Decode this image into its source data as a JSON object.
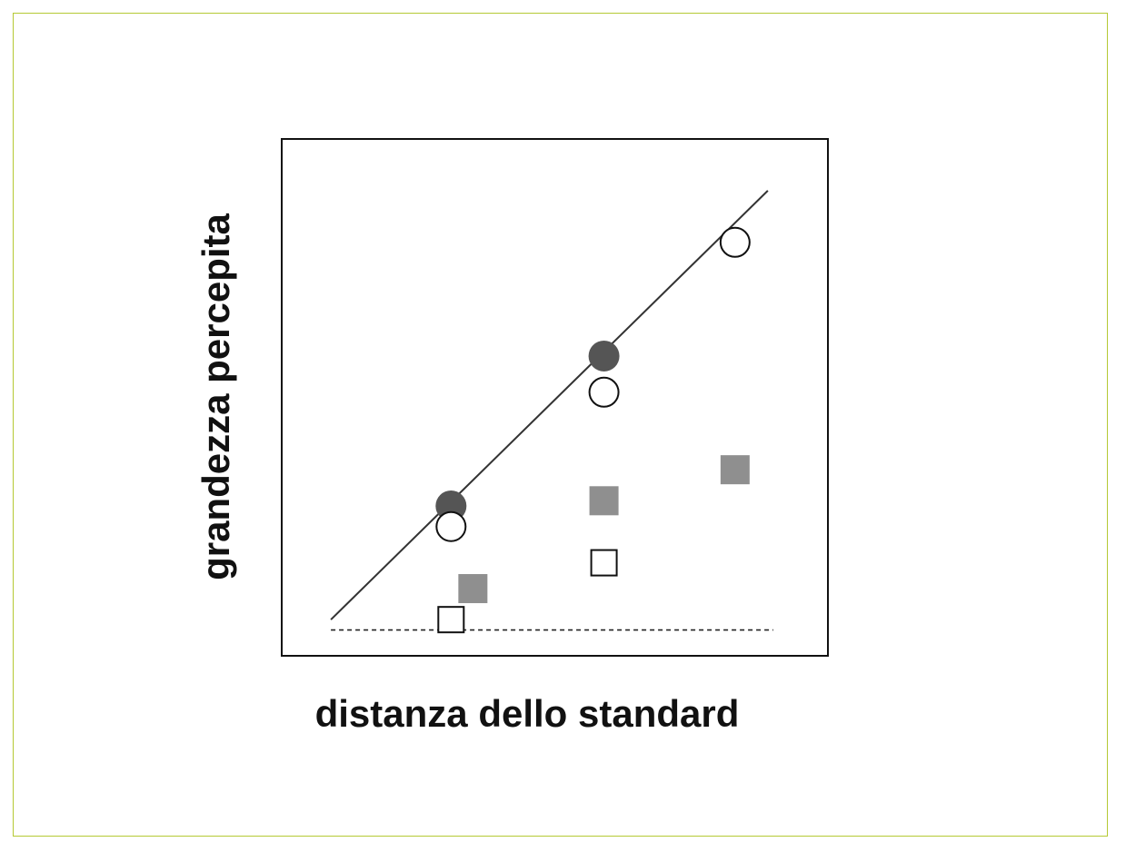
{
  "colors": {
    "frame_border": "#b5c934",
    "plot_border": "#111111",
    "fit_line": "#333333",
    "baseline": "#222222",
    "filled_circle": "#555555",
    "gray_square": "#8f8f8f",
    "open_marker_stroke": "#111111",
    "open_marker_fill": "#ffffff"
  },
  "chart_data": {
    "type": "scatter",
    "title": "",
    "xlabel": "distanza dello standard",
    "ylabel": "grandezza percepita",
    "xlim": [
      0,
      10
    ],
    "ylim": [
      0,
      10
    ],
    "grid": false,
    "tick_labels": false,
    "legend": "none",
    "series": [
      {
        "marker": "filled-circle",
        "color": "#555555",
        "points": [
          {
            "x": 3.1,
            "y": 2.9
          },
          {
            "x": 5.9,
            "y": 5.8
          }
        ]
      },
      {
        "marker": "open-circle",
        "color": "#ffffff",
        "points": [
          {
            "x": 3.1,
            "y": 2.5
          },
          {
            "x": 5.9,
            "y": 5.1
          },
          {
            "x": 8.3,
            "y": 8.0
          }
        ]
      },
      {
        "marker": "gray-square",
        "color": "#8f8f8f",
        "points": [
          {
            "x": 3.5,
            "y": 1.3
          },
          {
            "x": 5.9,
            "y": 3.0
          },
          {
            "x": 8.3,
            "y": 3.6
          }
        ]
      },
      {
        "marker": "open-square",
        "color": "#ffffff",
        "points": [
          {
            "x": 3.1,
            "y": 0.7
          },
          {
            "x": 5.9,
            "y": 1.8
          }
        ]
      }
    ],
    "lines": [
      {
        "style": "solid",
        "from": {
          "x": 0.9,
          "y": 0.7
        },
        "to": {
          "x": 8.9,
          "y": 9.0
        }
      },
      {
        "style": "dashed",
        "from": {
          "x": 0.9,
          "y": 0.5
        },
        "to": {
          "x": 9.0,
          "y": 0.5
        }
      }
    ]
  }
}
